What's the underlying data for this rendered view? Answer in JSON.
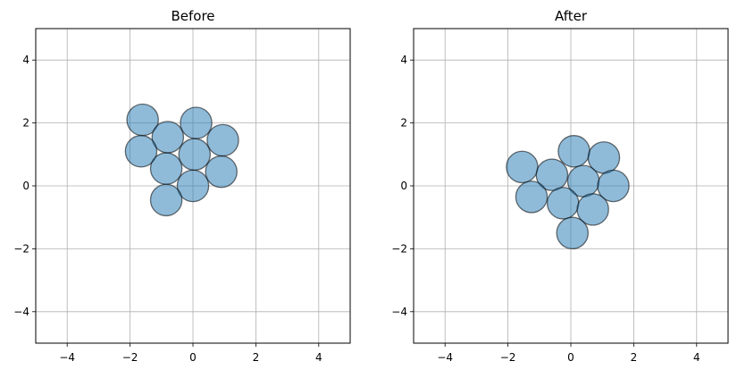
{
  "figure": {
    "background_color": "#ffffff"
  },
  "chart_data": [
    {
      "type": "scatter",
      "title": "Before",
      "xlabel": "",
      "ylabel": "",
      "xlim": [
        -5,
        5
      ],
      "ylim": [
        -5,
        5
      ],
      "xticks": [
        -4,
        -2,
        0,
        2,
        4
      ],
      "yticks": [
        -4,
        -2,
        0,
        2,
        4
      ],
      "grid": true,
      "marker": "circle",
      "marker_diameter_data_units": 1.0,
      "marker_fill": "#1f77b4",
      "marker_alpha": 0.5,
      "marker_edge": "#000000",
      "points": [
        {
          "x": -1.6,
          "y": 2.1
        },
        {
          "x": 0.1,
          "y": 2.0
        },
        {
          "x": -0.8,
          "y": 1.55
        },
        {
          "x": 0.95,
          "y": 1.45
        },
        {
          "x": -1.65,
          "y": 1.1
        },
        {
          "x": 0.05,
          "y": 1.0
        },
        {
          "x": -0.85,
          "y": 0.55
        },
        {
          "x": 0.9,
          "y": 0.45
        },
        {
          "x": 0.0,
          "y": 0.0
        },
        {
          "x": -0.85,
          "y": -0.45
        }
      ]
    },
    {
      "type": "scatter",
      "title": "After",
      "xlabel": "",
      "ylabel": "",
      "xlim": [
        -5,
        5
      ],
      "ylim": [
        -5,
        5
      ],
      "xticks": [
        -4,
        -2,
        0,
        2,
        4
      ],
      "yticks": [
        -4,
        -2,
        0,
        2,
        4
      ],
      "grid": true,
      "marker": "circle",
      "marker_diameter_data_units": 1.0,
      "marker_fill": "#1f77b4",
      "marker_alpha": 0.5,
      "marker_edge": "#000000",
      "points": [
        {
          "x": 0.1,
          "y": 1.1
        },
        {
          "x": 1.05,
          "y": 0.9
        },
        {
          "x": -1.55,
          "y": 0.6
        },
        {
          "x": -0.6,
          "y": 0.35
        },
        {
          "x": 0.4,
          "y": 0.15
        },
        {
          "x": 1.35,
          "y": 0.0
        },
        {
          "x": -1.25,
          "y": -0.35
        },
        {
          "x": -0.25,
          "y": -0.55
        },
        {
          "x": 0.7,
          "y": -0.75
        },
        {
          "x": 0.05,
          "y": -1.5
        }
      ]
    }
  ]
}
